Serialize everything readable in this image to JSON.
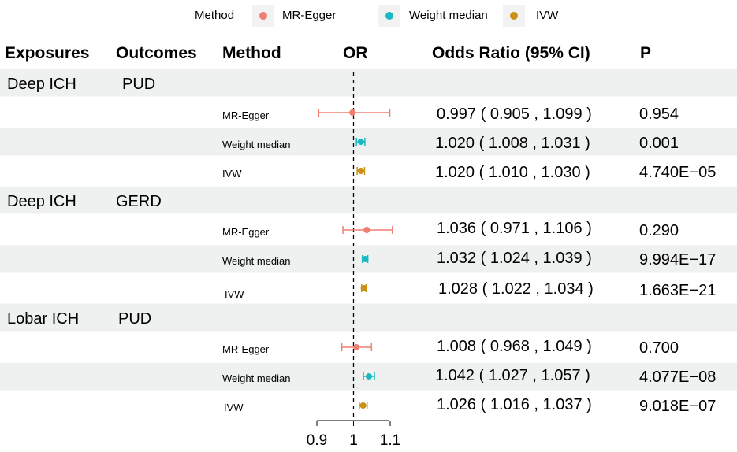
{
  "legend": {
    "title": "Method",
    "items": [
      {
        "label": "MR-Egger",
        "color": "#f07f72"
      },
      {
        "label": "Weight median",
        "color": "#1ab8c1"
      },
      {
        "label": "IVW",
        "color": "#c99217"
      }
    ]
  },
  "headers": {
    "exposures": "Exposures",
    "outcomes": "Outcomes",
    "method": "Method",
    "or": "OR",
    "odds_ratio": "Odds Ratio (95% CI)",
    "p": "P"
  },
  "colors": {
    "band": "#eef1f0",
    "mr_egger": "#f07f72",
    "weight_median": "#1ab8c1",
    "ivw": "#c99217"
  },
  "chart_data": {
    "type": "forest",
    "xlim": [
      0.9,
      1.1
    ],
    "x_ticks": [
      "0.9",
      "1",
      "1.1"
    ],
    "x_tick_values": [
      0.9,
      1.0,
      1.1
    ],
    "reference_line": 1,
    "groups": [
      {
        "exposure": "Deep ICH",
        "outcome": "PUD",
        "rows": [
          {
            "method": "MR-Egger",
            "or": 0.997,
            "lo": 0.905,
            "hi": 1.099,
            "ci_text": "0.997 ( 0.905 , 1.099 )",
            "p": "0.954"
          },
          {
            "method": "Weight median",
            "or": 1.02,
            "lo": 1.008,
            "hi": 1.031,
            "ci_text": "1.020 ( 1.008 , 1.031 )",
            "p": "0.001"
          },
          {
            "method": "IVW",
            "or": 1.02,
            "lo": 1.01,
            "hi": 1.03,
            "ci_text": "1.020 ( 1.010 , 1.030 )",
            "p": "4.740E−05"
          }
        ]
      },
      {
        "exposure": "Deep ICH",
        "outcome": "GERD",
        "rows": [
          {
            "method": "MR-Egger",
            "or": 1.036,
            "lo": 0.971,
            "hi": 1.106,
            "ci_text": "1.036 ( 0.971 , 1.106 )",
            "p": "0.290"
          },
          {
            "method": "Weight median",
            "or": 1.032,
            "lo": 1.024,
            "hi": 1.039,
            "ci_text": "1.032 ( 1.024 , 1.039 )",
            "p": "9.994E−17"
          },
          {
            "method": "IVW",
            "or": 1.028,
            "lo": 1.022,
            "hi": 1.034,
            "ci_text": "1.028 ( 1.022 , 1.034 )",
            "p": "1.663E−21"
          }
        ]
      },
      {
        "exposure": "Lobar ICH",
        "outcome": "PUD",
        "rows": [
          {
            "method": "MR-Egger",
            "or": 1.008,
            "lo": 0.968,
            "hi": 1.049,
            "ci_text": "1.008 ( 0.968 , 1.049 )",
            "p": "0.700"
          },
          {
            "method": "Weight median",
            "or": 1.042,
            "lo": 1.027,
            "hi": 1.057,
            "ci_text": "1.042 ( 1.027 , 1.057 )",
            "p": "4.077E−08"
          },
          {
            "method": "IVW",
            "or": 1.026,
            "lo": 1.016,
            "hi": 1.037,
            "ci_text": "1.026 ( 1.016 , 1.037 )",
            "p": "9.018E−07"
          }
        ]
      }
    ]
  }
}
